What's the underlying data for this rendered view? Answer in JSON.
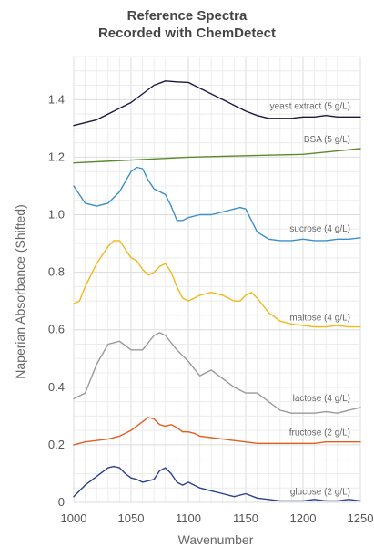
{
  "chart_data": {
    "type": "line",
    "title": [
      "Reference Spectra",
      "Recorded with ChemDetect"
    ],
    "xlabel": "Wavenumber",
    "ylabel": "Naperian Absorbance (Shifted)",
    "xlim": [
      1000,
      1250
    ],
    "ylim": [
      0,
      1.55
    ],
    "xticks": [
      "1000",
      "1050",
      "1100",
      "1150",
      "1200",
      "1250"
    ],
    "yticks": [
      "0",
      "0.2",
      "0.4",
      "0.6",
      "0.8",
      "1.0",
      "1.2",
      "1.4"
    ],
    "grid": true,
    "legend": "none",
    "series": [
      {
        "name": "yeast extract (5 g/L)",
        "color": "#1a1a3e",
        "x": [
          1000,
          1010,
          1020,
          1030,
          1040,
          1050,
          1060,
          1070,
          1080,
          1090,
          1100,
          1110,
          1120,
          1130,
          1140,
          1150,
          1160,
          1170,
          1180,
          1190,
          1200,
          1210,
          1220,
          1230,
          1240,
          1250
        ],
        "y": [
          1.31,
          1.32,
          1.33,
          1.35,
          1.37,
          1.39,
          1.42,
          1.45,
          1.465,
          1.462,
          1.46,
          1.44,
          1.42,
          1.4,
          1.38,
          1.36,
          1.345,
          1.335,
          1.335,
          1.335,
          1.34,
          1.34,
          1.345,
          1.34,
          1.34,
          1.34
        ]
      },
      {
        "name": "BSA (5 g/L)",
        "color": "#5a8a2a",
        "x": [
          1000,
          1050,
          1100,
          1150,
          1200,
          1250
        ],
        "y": [
          1.18,
          1.19,
          1.2,
          1.205,
          1.21,
          1.23
        ]
      },
      {
        "name": "sucrose (4 g/L)",
        "color": "#3a8fc8",
        "x": [
          1000,
          1005,
          1010,
          1020,
          1030,
          1040,
          1050,
          1055,
          1060,
          1065,
          1070,
          1075,
          1080,
          1085,
          1090,
          1095,
          1100,
          1110,
          1120,
          1130,
          1140,
          1145,
          1150,
          1155,
          1160,
          1170,
          1180,
          1190,
          1200,
          1210,
          1220,
          1230,
          1240,
          1250
        ],
        "y": [
          1.1,
          1.07,
          1.04,
          1.03,
          1.04,
          1.08,
          1.15,
          1.165,
          1.16,
          1.12,
          1.09,
          1.08,
          1.07,
          1.03,
          0.98,
          0.98,
          0.99,
          1.0,
          1.0,
          1.01,
          1.02,
          1.025,
          1.02,
          0.98,
          0.94,
          0.915,
          0.91,
          0.91,
          0.915,
          0.91,
          0.91,
          0.915,
          0.915,
          0.92
        ]
      },
      {
        "name": "maltose (4 g/L)",
        "color": "#f0b81a",
        "x": [
          1000,
          1005,
          1010,
          1020,
          1030,
          1035,
          1040,
          1045,
          1050,
          1055,
          1060,
          1065,
          1070,
          1075,
          1080,
          1085,
          1090,
          1095,
          1100,
          1110,
          1120,
          1130,
          1140,
          1145,
          1150,
          1155,
          1160,
          1170,
          1180,
          1190,
          1200,
          1210,
          1220,
          1230,
          1240,
          1250
        ],
        "y": [
          0.69,
          0.7,
          0.75,
          0.83,
          0.89,
          0.91,
          0.91,
          0.88,
          0.85,
          0.84,
          0.81,
          0.79,
          0.8,
          0.82,
          0.83,
          0.8,
          0.75,
          0.71,
          0.7,
          0.72,
          0.73,
          0.72,
          0.7,
          0.7,
          0.72,
          0.73,
          0.71,
          0.66,
          0.63,
          0.62,
          0.615,
          0.61,
          0.61,
          0.615,
          0.61,
          0.61
        ]
      },
      {
        "name": "lactose (4 g/L)",
        "color": "#999999",
        "x": [
          1000,
          1010,
          1020,
          1030,
          1040,
          1050,
          1060,
          1070,
          1075,
          1080,
          1090,
          1100,
          1110,
          1115,
          1120,
          1130,
          1140,
          1150,
          1160,
          1170,
          1180,
          1190,
          1200,
          1210,
          1220,
          1230,
          1240,
          1250
        ],
        "y": [
          0.36,
          0.38,
          0.48,
          0.55,
          0.56,
          0.53,
          0.53,
          0.58,
          0.59,
          0.58,
          0.53,
          0.49,
          0.44,
          0.45,
          0.46,
          0.43,
          0.4,
          0.38,
          0.38,
          0.35,
          0.32,
          0.31,
          0.31,
          0.31,
          0.315,
          0.31,
          0.32,
          0.33
        ]
      },
      {
        "name": "fructose (2 g/L)",
        "color": "#e06020",
        "x": [
          1000,
          1010,
          1020,
          1030,
          1040,
          1050,
          1060,
          1065,
          1070,
          1075,
          1080,
          1085,
          1090,
          1095,
          1100,
          1105,
          1110,
          1120,
          1130,
          1140,
          1150,
          1160,
          1170,
          1180,
          1190,
          1200,
          1210,
          1220,
          1230,
          1240,
          1250
        ],
        "y": [
          0.2,
          0.21,
          0.215,
          0.22,
          0.23,
          0.25,
          0.28,
          0.295,
          0.29,
          0.27,
          0.265,
          0.27,
          0.26,
          0.245,
          0.245,
          0.24,
          0.23,
          0.225,
          0.22,
          0.215,
          0.21,
          0.205,
          0.205,
          0.205,
          0.205,
          0.205,
          0.205,
          0.21,
          0.21,
          0.21,
          0.21
        ]
      },
      {
        "name": "glucose (2 g/L)",
        "color": "#2a3f8f",
        "x": [
          1000,
          1005,
          1010,
          1020,
          1030,
          1035,
          1040,
          1045,
          1050,
          1055,
          1060,
          1070,
          1075,
          1080,
          1085,
          1090,
          1095,
          1100,
          1110,
          1120,
          1130,
          1140,
          1150,
          1160,
          1170,
          1180,
          1190,
          1200,
          1210,
          1220,
          1230,
          1240,
          1250
        ],
        "y": [
          0.02,
          0.04,
          0.06,
          0.09,
          0.12,
          0.125,
          0.12,
          0.1,
          0.085,
          0.08,
          0.07,
          0.08,
          0.11,
          0.12,
          0.1,
          0.07,
          0.06,
          0.07,
          0.05,
          0.04,
          0.03,
          0.02,
          0.03,
          0.015,
          0.01,
          0.005,
          0.005,
          0.005,
          0.01,
          0.005,
          0.005,
          0.01,
          0.005
        ]
      }
    ]
  }
}
